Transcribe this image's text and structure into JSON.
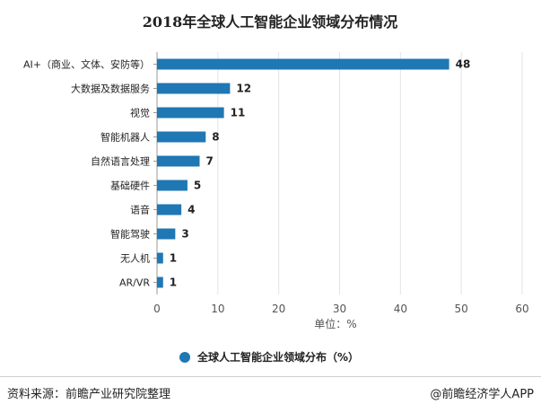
{
  "chart_data": {
    "type": "bar",
    "orientation": "horizontal",
    "title": "2018年全球人工智能企业领域分布情况",
    "categories": [
      "AI+（商业、文体、安防等）",
      "大数据及数据服务",
      "视觉",
      "智能机器人",
      "自然语言处理",
      "基础硬件",
      "语音",
      "智能驾驶",
      "无人机",
      "AR/VR"
    ],
    "series": [
      {
        "name": "全球人工智能企业领域分布（%）",
        "values": [
          48,
          12,
          11,
          8,
          7,
          5,
          4,
          3,
          1,
          1
        ]
      }
    ],
    "xlim": [
      0,
      60
    ],
    "xticks": [
      0,
      10,
      20,
      30,
      40,
      50,
      60
    ],
    "xlabel": "单位：%",
    "ylabel": "",
    "grid": true,
    "legend_position": "bottom",
    "bar_color": "#1f77b4"
  },
  "footer": {
    "source": "资料来源：前瞻产业研究院整理",
    "brand": "@前瞻经济学人APP"
  },
  "watermark": "前瞻产业研究院"
}
